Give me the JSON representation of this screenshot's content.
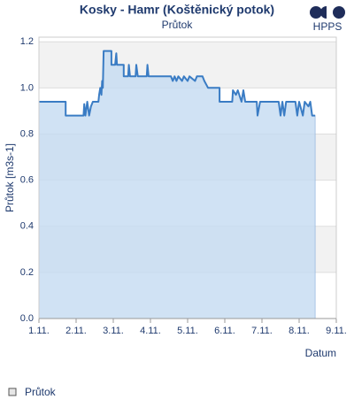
{
  "chart_data": {
    "type": "line",
    "title": "Kosky - Hamr (Koštěnický potok)",
    "subtitle": "Průtok",
    "logo": "HPPS",
    "ylabel": "Průtok [m3s-1]",
    "xlabel": "Datum",
    "xlim": [
      1,
      9
    ],
    "xticks": [
      {
        "value": 1,
        "label": "1.11."
      },
      {
        "value": 2,
        "label": "2.11."
      },
      {
        "value": 3,
        "label": "3.11."
      },
      {
        "value": 4,
        "label": "4.11."
      },
      {
        "value": 5,
        "label": "5.11."
      },
      {
        "value": 6,
        "label": "6.11."
      },
      {
        "value": 7,
        "label": "7.11."
      },
      {
        "value": 8,
        "label": "8.11."
      },
      {
        "value": 9,
        "label": "9.11."
      }
    ],
    "ylim": [
      0,
      1.22
    ],
    "yticks": [
      {
        "value": 0,
        "label": "0.0"
      },
      0.2,
      0.4,
      0.6,
      0.8,
      {
        "value": 1,
        "label": "1.0"
      },
      1.2
    ],
    "grid": true,
    "x": [
      1,
      1.72,
      1.72,
      2.2,
      2.22,
      2.25,
      2.3,
      2.35,
      2.4,
      2.45,
      2.6,
      2.62,
      2.65,
      2.68,
      2.7,
      2.72,
      2.74,
      2.95,
      2.95,
      3.05,
      3.08,
      3.1,
      3.28,
      3.28,
      3.4,
      3.42,
      3.45,
      3.6,
      3.62,
      3.66,
      3.9,
      3.92,
      3.95,
      4.55,
      4.6,
      4.65,
      4.7,
      4.75,
      4.85,
      4.9,
      5.0,
      5.05,
      5.2,
      5.25,
      5.4,
      5.45,
      5.55,
      5.86,
      5.86,
      6.2,
      6.22,
      6.3,
      6.35,
      6.45,
      6.5,
      6.55,
      6.86,
      6.88,
      6.95,
      7.45,
      7.5,
      7.55,
      7.6,
      7.65,
      7.9,
      7.95,
      8.0,
      8.1,
      8.15,
      8.25,
      8.3,
      8.35,
      8.43
    ],
    "series": [
      {
        "name": "Průtok",
        "color": "#3a7cc4",
        "fill": "#c4dbf1",
        "values": [
          0.94,
          0.94,
          0.88,
          0.88,
          0.93,
          0.88,
          0.94,
          0.88,
          0.92,
          0.94,
          0.94,
          0.97,
          1.0,
          0.97,
          1.03,
          1.0,
          1.16,
          1.16,
          1.1,
          1.1,
          1.15,
          1.1,
          1.1,
          1.05,
          1.05,
          1.1,
          1.05,
          1.05,
          1.1,
          1.05,
          1.05,
          1.1,
          1.05,
          1.05,
          1.03,
          1.05,
          1.03,
          1.05,
          1.03,
          1.05,
          1.03,
          1.05,
          1.03,
          1.05,
          1.05,
          1.03,
          1.0,
          1.0,
          0.94,
          0.94,
          0.99,
          0.97,
          0.99,
          0.94,
          0.99,
          0.94,
          0.94,
          0.88,
          0.94,
          0.94,
          0.88,
          0.94,
          0.88,
          0.94,
          0.94,
          0.88,
          0.94,
          0.88,
          0.94,
          0.92,
          0.94,
          0.88,
          0.88
        ]
      }
    ]
  }
}
